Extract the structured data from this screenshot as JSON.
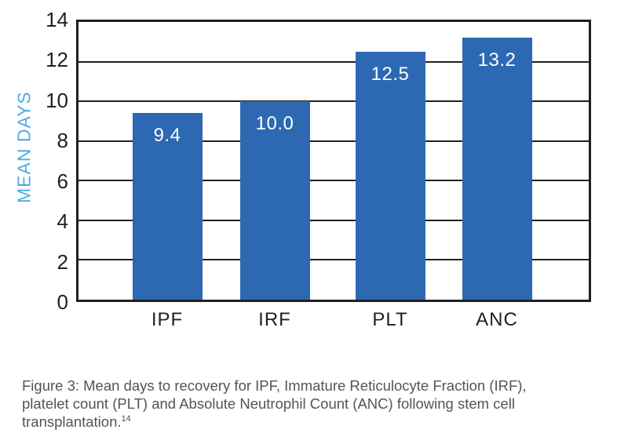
{
  "chart_data": {
    "type": "bar",
    "title": "",
    "xlabel": "",
    "ylabel": "MEAN DAYS",
    "categories": [
      "IPF",
      "IRF",
      "PLT",
      "ANC"
    ],
    "values": [
      9.4,
      10.0,
      12.5,
      13.2
    ],
    "value_labels": [
      "9.4",
      "10.0",
      "12.5",
      "13.2"
    ],
    "ylim": [
      0,
      14
    ],
    "yticks": [
      0,
      2,
      4,
      6,
      8,
      10,
      12,
      14
    ],
    "grid": "horizontal-only",
    "legend": "none",
    "colors": {
      "bar": "#2d68b2",
      "axis": "#231f20",
      "gridline": "#231f20",
      "y_axis_title": "#4fabe4",
      "tick_label": "#231f20",
      "category_label": "#231f20",
      "value_label": "#ffffff",
      "caption_text": "#545457"
    }
  },
  "caption": {
    "lines": [
      "Figure 3:  Mean days to recovery for IPF, Immature Reticulocyte Fraction (IRF),",
      "platelet count (PLT) and Absolute Neutrophil Count (ANC) following stem cell",
      "transplantation."
    ],
    "superscript": "14"
  }
}
